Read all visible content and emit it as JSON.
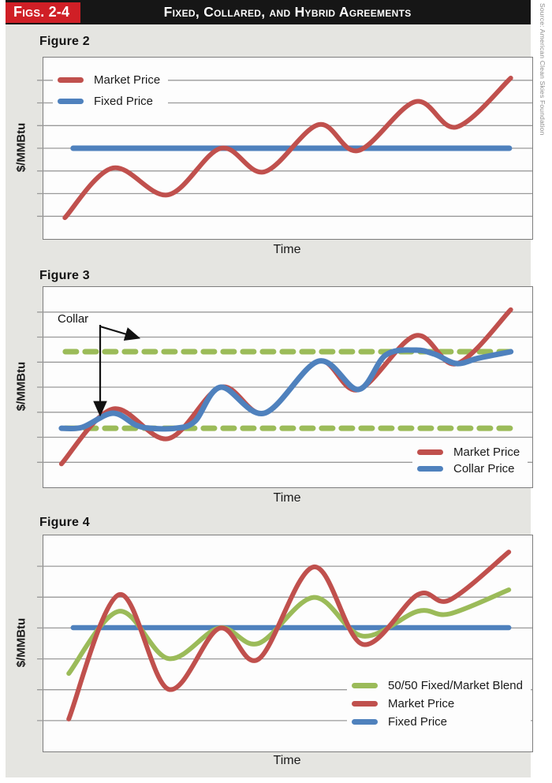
{
  "header": {
    "tag": "Figs. 2-4",
    "title": "Fixed, Collared, and Hybrid Agreements",
    "tag_bg": "#d01f26",
    "bar_bg": "#161616"
  },
  "source_note": "Source: American Clean Skies Foundation",
  "colors": {
    "market": "#c0504d",
    "fixed": "#4f81bd",
    "collar": "#4f81bd",
    "blend": "#9bbb59",
    "collar_band": "#9bbb59",
    "grid": "#9a9a9a",
    "plot_border": "#7d7d7d",
    "plot_bg": "#fdfdfd",
    "page_bg": "#e5e5e1"
  },
  "figures": [
    {
      "title": "Figure 2",
      "ylabel": "$/MMBtu",
      "xlabel": "Time",
      "legend": [
        {
          "label": "Market Price",
          "color": "#c0504d"
        },
        {
          "label": "Fixed Price",
          "color": "#4f81bd"
        }
      ]
    },
    {
      "title": "Figure 3",
      "ylabel": "$/MMBtu",
      "xlabel": "Time",
      "annotation_label": "Collar",
      "legend": [
        {
          "label": "Market Price",
          "color": "#c0504d"
        },
        {
          "label": "Collar Price",
          "color": "#4f81bd"
        }
      ]
    },
    {
      "title": "Figure 4",
      "ylabel": "$/MMBtu",
      "xlabel": "Time",
      "legend": [
        {
          "label": "50/50 Fixed/Market Blend",
          "color": "#9bbb59"
        },
        {
          "label": "Market Price",
          "color": "#c0504d"
        },
        {
          "label": "Fixed Price",
          "color": "#4f81bd"
        }
      ]
    }
  ],
  "chart_data": [
    {
      "type": "line",
      "title": "Figure 2",
      "xlabel": "Time",
      "ylabel": "$/MMBtu",
      "axes_note": "conceptual illustration, no numeric ticks; values normalized 0-100",
      "xlim": [
        0,
        100
      ],
      "ylim": [
        0,
        100
      ],
      "grid_bands": 8,
      "legend_position": "top-left-inside",
      "series": [
        {
          "name": "fixed-price",
          "label": "Fixed Price",
          "color": "#4f81bd",
          "width": 7,
          "x": [
            6.1,
            95.3
          ],
          "v": [
            50,
            50
          ]
        },
        {
          "name": "market-price",
          "label": "Market Price",
          "color": "#c0504d",
          "width": 6,
          "x": [
            4.4,
            14.2,
            25.5,
            36.3,
            45.2,
            56.3,
            64.4,
            76.1,
            84.5,
            95.6
          ],
          "v": [
            11.7,
            39.1,
            24.3,
            50.0,
            37.0,
            63.0,
            48.7,
            75.7,
            61.7,
            88.7
          ]
        }
      ]
    },
    {
      "type": "line",
      "title": "Figure 3",
      "xlabel": "Time",
      "ylabel": "$/MMBtu",
      "axes_note": "conceptual illustration, no numeric ticks; values normalized 0-100",
      "xlim": [
        0,
        100
      ],
      "ylim": [
        0,
        100
      ],
      "grid_bands": 8,
      "legend_position": "bottom-right-inside",
      "collar_upper": 67.7,
      "collar_lower": 29.5,
      "series": [
        {
          "name": "collar-upper-bound",
          "label": "Collar upper bound",
          "color": "#9bbb59",
          "width": 7,
          "dash": "14 11",
          "x": [
            4.5,
            96.8
          ],
          "v": [
            67.7,
            67.7
          ]
        },
        {
          "name": "collar-lower-bound",
          "label": "Collar lower bound",
          "color": "#9bbb59",
          "width": 7,
          "dash": "14 11",
          "x": [
            4.5,
            96.8
          ],
          "v": [
            29.5,
            29.5
          ]
        },
        {
          "name": "market-price",
          "label": "Market Price",
          "color": "#c0504d",
          "width": 6,
          "x": [
            3.7,
            14.2,
            25.5,
            36.3,
            45.2,
            56.3,
            64.4,
            76.1,
            84.5,
            95.6
          ],
          "v": [
            11.7,
            39.1,
            24.3,
            50.0,
            37.0,
            63.0,
            48.7,
            75.7,
            61.7,
            88.7
          ]
        },
        {
          "name": "collar-price",
          "label": "Collar Price",
          "color": "#4f81bd",
          "width": 7,
          "x": [
            3.7,
            8.0,
            14.2,
            19.0,
            22.0,
            27.0,
            31.0,
            36.3,
            45.2,
            56.3,
            64.4,
            70.0,
            76.1,
            80.0,
            84.5,
            89.0,
            95.6
          ],
          "v": [
            29.5,
            30.0,
            37.0,
            31.0,
            29.5,
            29.5,
            33.0,
            50.0,
            37.0,
            63.0,
            48.8,
            66.0,
            68.5,
            66.5,
            61.8,
            64.5,
            67.7
          ]
        }
      ]
    },
    {
      "type": "line",
      "title": "Figure 4",
      "xlabel": "Time",
      "ylabel": "$/MMBtu",
      "axes_note": "conceptual illustration, no numeric ticks; values normalized 0-100",
      "xlim": [
        0,
        100
      ],
      "ylim": [
        0,
        100
      ],
      "grid_bands": 7,
      "legend_position": "bottom-right-inside",
      "series": [
        {
          "name": "fixed-price",
          "label": "Fixed Price",
          "color": "#4f81bd",
          "width": 6.5,
          "x": [
            6.1,
            95.2
          ],
          "v": [
            57.3,
            57.3
          ]
        },
        {
          "name": "blend-price",
          "label": "50/50 Fixed/Market Blend",
          "color": "#9bbb59",
          "width": 6,
          "x": [
            5.2,
            15.5,
            25.6,
            36.0,
            44.0,
            55.3,
            65.3,
            76.6,
            83.1,
            95.2
          ],
          "v": [
            36.1,
            64.9,
            43.0,
            57.2,
            50.0,
            71.3,
            53.4,
            64.9,
            63.7,
            74.8
          ]
        },
        {
          "name": "market-price",
          "label": "Market Price",
          "color": "#c0504d",
          "width": 6,
          "x": [
            5.2,
            15.5,
            25.6,
            36.0,
            44.0,
            55.3,
            65.3,
            76.6,
            83.1,
            95.2
          ],
          "v": [
            15.0,
            72.6,
            28.8,
            57.0,
            42.7,
            85.4,
            49.6,
            72.6,
            70.1,
            92.3
          ]
        }
      ]
    }
  ]
}
